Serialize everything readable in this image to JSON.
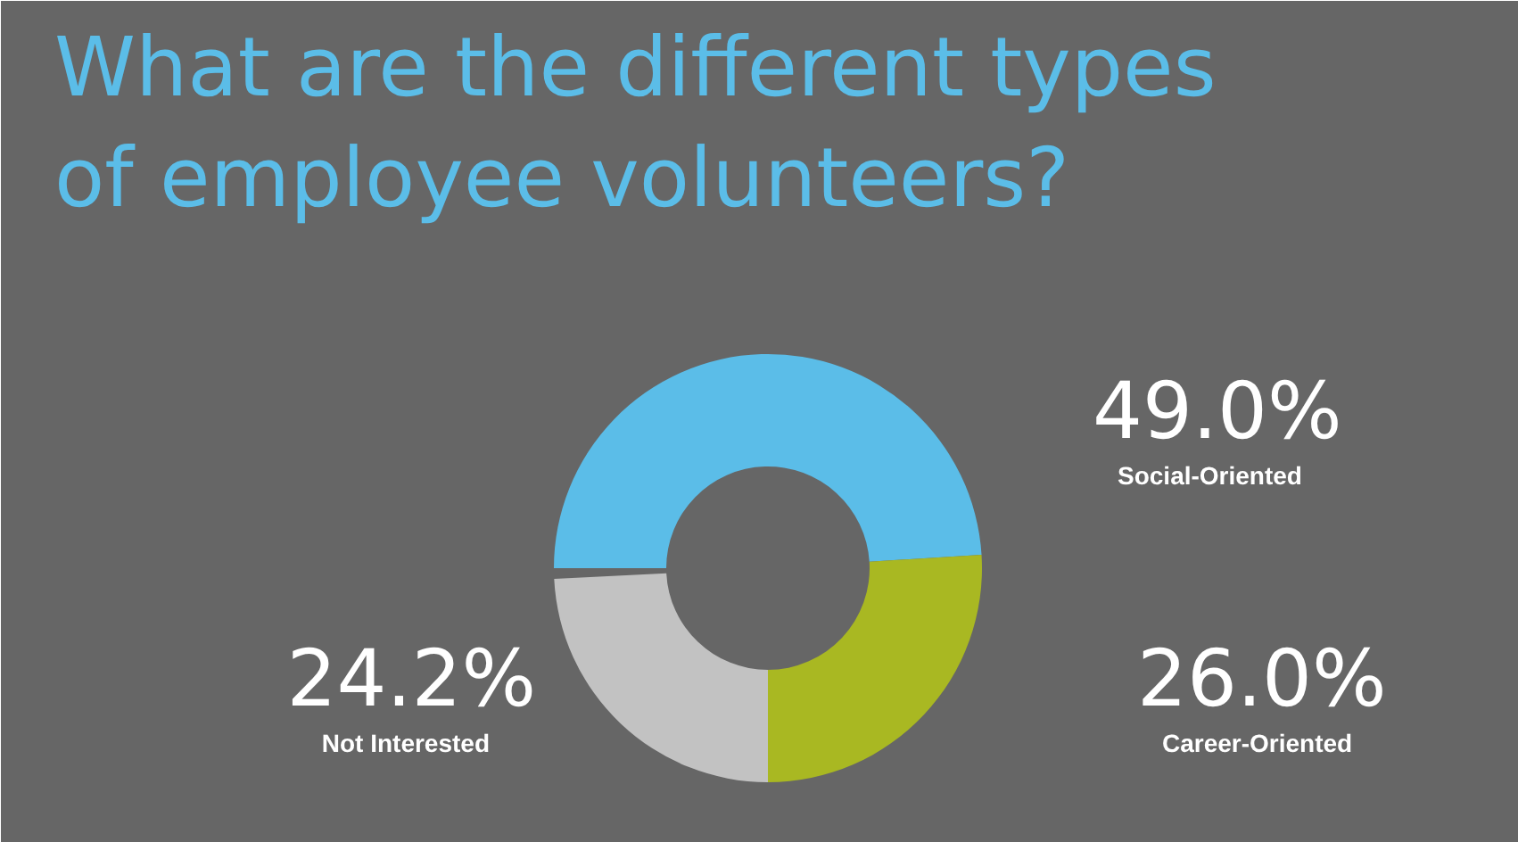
{
  "chart_data": {
    "type": "donut",
    "title": "What are the different types of employee volunteers?",
    "categories": [
      "Social-Oriented",
      "Career-Oriented",
      "Not Interested"
    ],
    "values": [
      49.0,
      26.0,
      24.2
    ],
    "colors": [
      "#5bbde8",
      "#a9b822",
      "#c2c2c2"
    ],
    "value_labels": [
      "49.0%",
      "26.0%",
      "24.2%"
    ]
  }
}
